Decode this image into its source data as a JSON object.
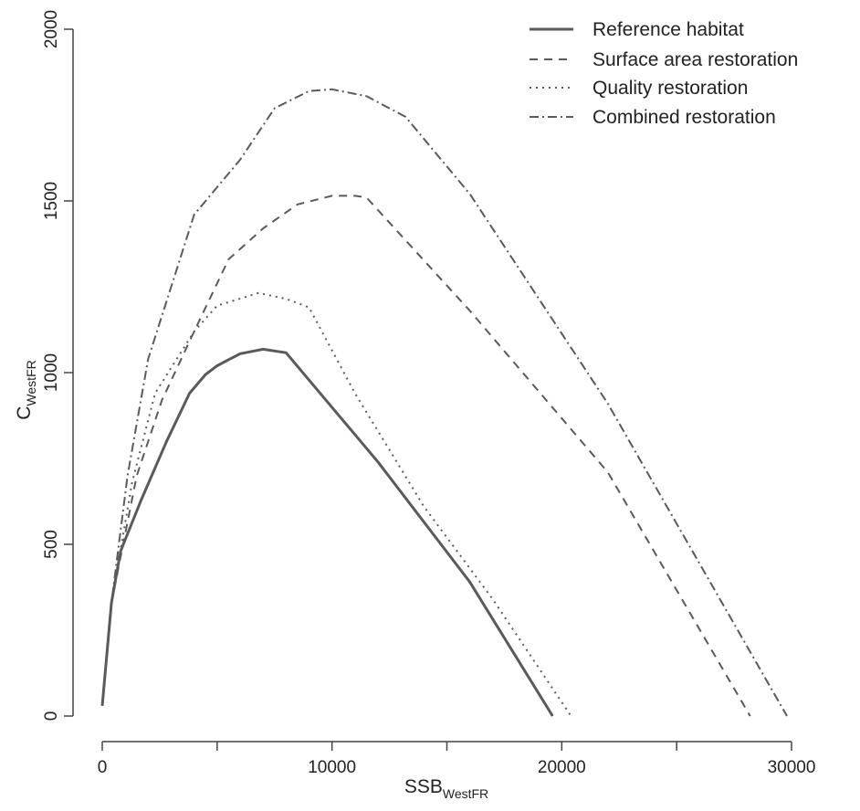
{
  "chart_data": {
    "type": "line",
    "title": "",
    "xlabel": {
      "main": "SSB",
      "sub": "WestFR"
    },
    "ylabel": {
      "main": "C",
      "sub": "WestFR"
    },
    "xlim": [
      0,
      30000
    ],
    "ylim": [
      0,
      2000
    ],
    "x_ticks": [
      0,
      5000,
      10000,
      15000,
      20000,
      25000,
      30000
    ],
    "x_tick_labels": [
      "0",
      "",
      "10000",
      "",
      "20000",
      "",
      "30000"
    ],
    "y_ticks": [
      0,
      500,
      1000,
      1500,
      2000
    ],
    "y_tick_labels": [
      "0",
      "500",
      "1000",
      "1500",
      "2000"
    ],
    "grid": false,
    "legend_position": "top-right",
    "series": [
      {
        "name": "Reference habitat",
        "style": "solid",
        "color": "#5a5a5a",
        "points": [
          [
            0,
            30
          ],
          [
            400,
            330
          ],
          [
            800,
            480
          ],
          [
            1700,
            630
          ],
          [
            2800,
            800
          ],
          [
            3800,
            940
          ],
          [
            4500,
            995
          ],
          [
            5000,
            1020
          ],
          [
            6000,
            1055
          ],
          [
            7000,
            1068
          ],
          [
            8000,
            1058
          ],
          [
            12000,
            740
          ],
          [
            16000,
            390
          ],
          [
            19600,
            0
          ]
        ]
      },
      {
        "name": "Surface area restoration",
        "style": "dashed",
        "color": "#5a5a5a",
        "points": [
          [
            0,
            30
          ],
          [
            400,
            330
          ],
          [
            1500,
            700
          ],
          [
            2600,
            920
          ],
          [
            4000,
            1120
          ],
          [
            5500,
            1330
          ],
          [
            7000,
            1420
          ],
          [
            8500,
            1490
          ],
          [
            10000,
            1515
          ],
          [
            11000,
            1515
          ],
          [
            11500,
            1510
          ],
          [
            16000,
            1180
          ],
          [
            22000,
            710
          ],
          [
            28200,
            0
          ]
        ]
      },
      {
        "name": "Quality restoration",
        "style": "dotted",
        "color": "#5a5a5a",
        "points": [
          [
            0,
            30
          ],
          [
            400,
            330
          ],
          [
            1300,
            680
          ],
          [
            2300,
            940
          ],
          [
            4000,
            1120
          ],
          [
            5000,
            1195
          ],
          [
            6800,
            1232
          ],
          [
            8000,
            1215
          ],
          [
            9000,
            1190
          ],
          [
            11000,
            940
          ],
          [
            14000,
            610
          ],
          [
            17000,
            340
          ],
          [
            20400,
            0
          ]
        ]
      },
      {
        "name": "Combined restoration",
        "style": "dashdot",
        "color": "#5a5a5a",
        "points": [
          [
            0,
            30
          ],
          [
            400,
            330
          ],
          [
            1100,
            700
          ],
          [
            2000,
            1040
          ],
          [
            4000,
            1460
          ],
          [
            6000,
            1620
          ],
          [
            7500,
            1770
          ],
          [
            9000,
            1820
          ],
          [
            10000,
            1825
          ],
          [
            11500,
            1805
          ],
          [
            13200,
            1745
          ],
          [
            16000,
            1520
          ],
          [
            22000,
            910
          ],
          [
            29800,
            0
          ]
        ]
      }
    ]
  }
}
